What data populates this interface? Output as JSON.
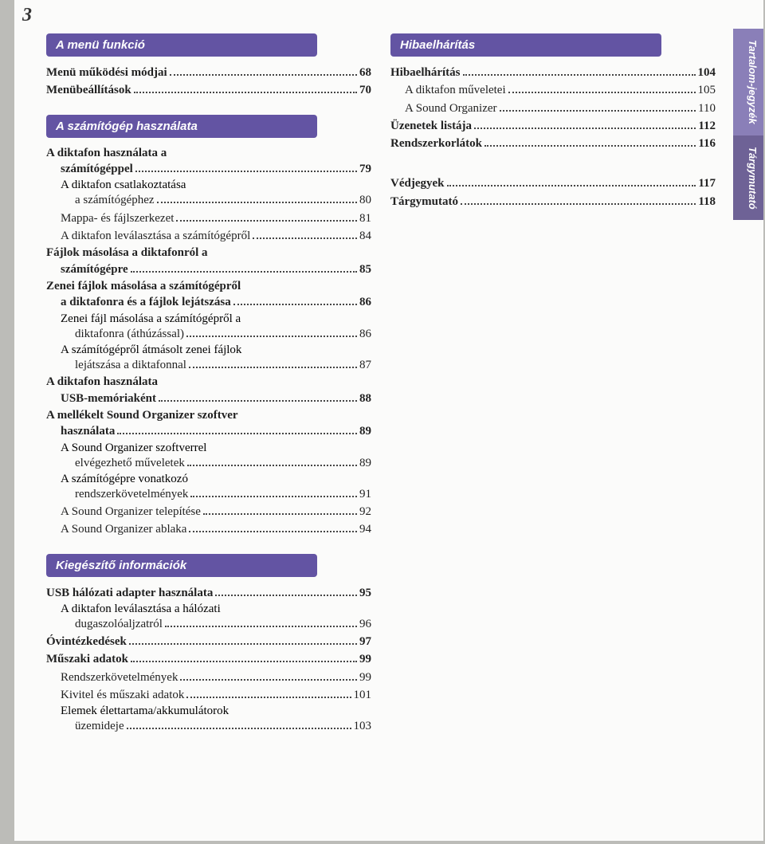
{
  "page_number": "3",
  "side_tabs": [
    {
      "label": "Tartalom-jegyzék",
      "bg": "#8a7fb8"
    },
    {
      "label": "Tárgymutató",
      "bg": "#6e6296"
    }
  ],
  "colors": {
    "section_head_bg": "#6354a3",
    "section_head_fg": "#ffffff",
    "page_bg": "#fbfbfa",
    "body_bg": "#bcbcb8",
    "text": "#222222"
  },
  "left_sections": [
    {
      "heading": "A menü funkció",
      "items": [
        {
          "label": "Menü működési módjai",
          "page": "68",
          "bold": true,
          "lvl": 0
        },
        {
          "label": "Menübeállítások",
          "page": "70",
          "bold": true,
          "lvl": 0
        }
      ]
    },
    {
      "heading": "A számítógép használata",
      "items": [
        {
          "label_lines": [
            "A diktafon használata a",
            "számítógéppel"
          ],
          "page": "79",
          "bold": true,
          "lvl": 0
        },
        {
          "label_lines": [
            "A diktafon csatlakoztatása",
            "a számítógéphez"
          ],
          "page": "80",
          "lvl": 1
        },
        {
          "label": "Mappa- és fájlszerkezet",
          "page": "81",
          "lvl": 1
        },
        {
          "label": "A diktafon leválasztása a számítógépről",
          "page": "84",
          "lvl": 1
        },
        {
          "label_lines": [
            "Fájlok másolása a diktafonról a",
            "számítógépre"
          ],
          "page": "85",
          "bold": true,
          "lvl": 0
        },
        {
          "label_lines": [
            "Zenei fájlok másolása a számítógépről",
            "a diktafonra és a fájlok lejátszása"
          ],
          "page": "86",
          "bold": true,
          "lvl": 0
        },
        {
          "label_lines": [
            "Zenei fájl másolása a számítógépről a",
            "diktafonra (áthúzással)"
          ],
          "page": "86",
          "lvl": 1
        },
        {
          "label_lines": [
            "A számítógépről átmásolt zenei fájlok",
            "lejátszása a diktafonnal"
          ],
          "page": "87",
          "lvl": 1
        },
        {
          "label_lines": [
            "A diktafon használata",
            "USB-memóriaként"
          ],
          "page": "88",
          "bold": true,
          "lvl": 0
        },
        {
          "label_lines": [
            "A mellékelt Sound Organizer szoftver",
            "használata"
          ],
          "page": "89",
          "bold": true,
          "lvl": 0
        },
        {
          "label_lines": [
            "A Sound Organizer szoftverrel",
            "elvégezhető műveletek"
          ],
          "page": "89",
          "lvl": 1
        },
        {
          "label_lines": [
            "A számítógépre vonatkozó",
            "rendszerkövetelmények"
          ],
          "page": "91",
          "lvl": 1
        },
        {
          "label": "A Sound Organizer telepítése",
          "page": "92",
          "lvl": 1
        },
        {
          "label": "A Sound Organizer ablaka",
          "page": "94",
          "lvl": 1
        }
      ]
    },
    {
      "heading": "Kiegészítő információk",
      "items": [
        {
          "label": "USB hálózati adapter használata",
          "page": "95",
          "bold": true,
          "lvl": 0
        },
        {
          "label_lines": [
            "A diktafon leválasztása a hálózati",
            "dugaszolóaljzatról"
          ],
          "page": "96",
          "lvl": 1
        },
        {
          "label": "Óvintézkedések",
          "page": "97",
          "bold": true,
          "lvl": 0
        },
        {
          "label": "Műszaki adatok",
          "page": "99",
          "bold": true,
          "lvl": 0
        },
        {
          "label": "Rendszerkövetelmények",
          "page": "99",
          "lvl": 1
        },
        {
          "label": "Kivitel és műszaki adatok",
          "page": "101",
          "lvl": 1
        },
        {
          "label_lines": [
            "Elemek élettartama/akkumulátorok",
            "üzemideje"
          ],
          "page": "103",
          "lvl": 1
        }
      ]
    }
  ],
  "right_sections": [
    {
      "heading": "Hibaelhárítás",
      "items": [
        {
          "label": "Hibaelhárítás",
          "page": "104",
          "bold": true,
          "lvl": 0
        },
        {
          "label": "A diktafon műveletei",
          "page": "105",
          "lvl": 1
        },
        {
          "label": "A Sound Organizer",
          "page": "110",
          "lvl": 1
        },
        {
          "label": "Üzenetek listája",
          "page": "112",
          "bold": true,
          "lvl": 0
        },
        {
          "label": "Rendszerkorlátok",
          "page": "116",
          "bold": true,
          "lvl": 0
        }
      ]
    },
    {
      "items": [
        {
          "label": "Védjegyek",
          "page": "117",
          "bold": true,
          "lvl": 0
        },
        {
          "label": "Tárgymutató",
          "page": "118",
          "bold": true,
          "lvl": 0
        }
      ]
    }
  ]
}
